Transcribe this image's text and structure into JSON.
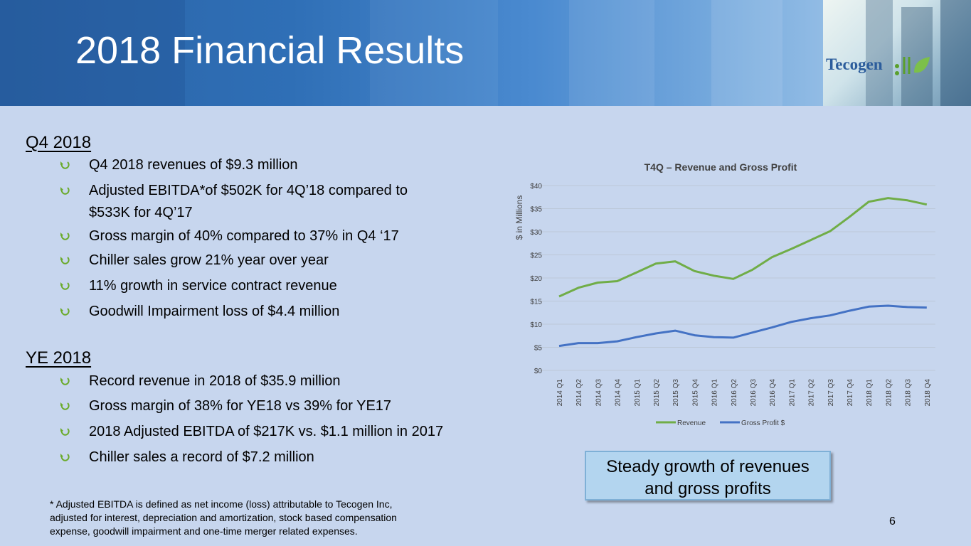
{
  "slide": {
    "title": "2018 Financial Results",
    "logo_text": "Tecogen",
    "page_number": "6"
  },
  "q4": {
    "heading": "Q4 2018",
    "bullets": [
      [
        "Q4 2018 revenues of $9.3 million"
      ],
      [
        "Adjusted EBITDA*of $502K for 4Q’18 compared to",
        "$533K for 4Q’17"
      ],
      [
        "Gross margin of 40% compared to 37% in Q4 ‘17"
      ],
      [
        "Chiller sales grow 21% year over year"
      ],
      [
        "11% growth in service contract revenue"
      ],
      [
        "Goodwill Impairment loss of $4.4 million"
      ]
    ]
  },
  "ye": {
    "heading": "YE 2018",
    "bullets": [
      [
        "Record revenue in 2018 of $35.9 million"
      ],
      [
        "Gross margin of 38% for YE18 vs 39% for YE17"
      ],
      [
        "2018 Adjusted EBITDA of $217K vs. $1.1 million in 2017"
      ],
      [
        "Chiller sales a record of $7.2 million"
      ]
    ]
  },
  "footnote": [
    "* Adjusted EBITDA is defined as net income (loss) attributable to Tecogen Inc,",
    "adjusted for interest, depreciation and amortization, stock based compensation",
    "expense, goodwill impairment and one-time merger related expenses."
  ],
  "callout": [
    "Steady growth of revenues",
    "and gross profits"
  ],
  "colors": {
    "revenue": "#70ad47",
    "gross_profit": "#4472c4",
    "bullet_arrow": "#6aaa2a"
  },
  "chart_data": {
    "type": "line",
    "title": "T4Q – Revenue and Gross Profit",
    "ylabel": "$ in Millions",
    "xlabel": "",
    "ylim": [
      0,
      40
    ],
    "y_ticks": [
      "$0",
      "$5",
      "$10",
      "$15",
      "$20",
      "$25",
      "$30",
      "$35",
      "$40"
    ],
    "grid": true,
    "legend": "bottom",
    "categories": [
      "2014 Q1",
      "2014 Q2",
      "2014 Q3",
      "2014 Q4",
      "2015 Q1",
      "2015 Q2",
      "2015 Q3",
      "2015 Q4",
      "2016 Q1",
      "2016 Q2",
      "2016 Q3",
      "2016 Q4",
      "2017 Q1",
      "2017 Q2",
      "2017 Q3",
      "2017 Q4",
      "2018 Q1",
      "2018 Q2",
      "2018 Q3",
      "2018 Q4"
    ],
    "series": [
      {
        "name": "Revenue",
        "values": [
          16.0,
          17.9,
          19.0,
          19.3,
          21.2,
          23.1,
          23.6,
          21.5,
          20.5,
          19.8,
          21.8,
          24.5,
          26.3,
          28.2,
          30.1,
          33.2,
          36.5,
          37.3,
          36.8,
          35.9
        ]
      },
      {
        "name": "Gross Profit $",
        "values": [
          5.3,
          5.9,
          5.9,
          6.3,
          7.2,
          8.0,
          8.6,
          7.6,
          7.2,
          7.1,
          8.2,
          9.3,
          10.5,
          11.3,
          11.9,
          12.9,
          13.8,
          14.0,
          13.7,
          13.6
        ]
      }
    ]
  }
}
